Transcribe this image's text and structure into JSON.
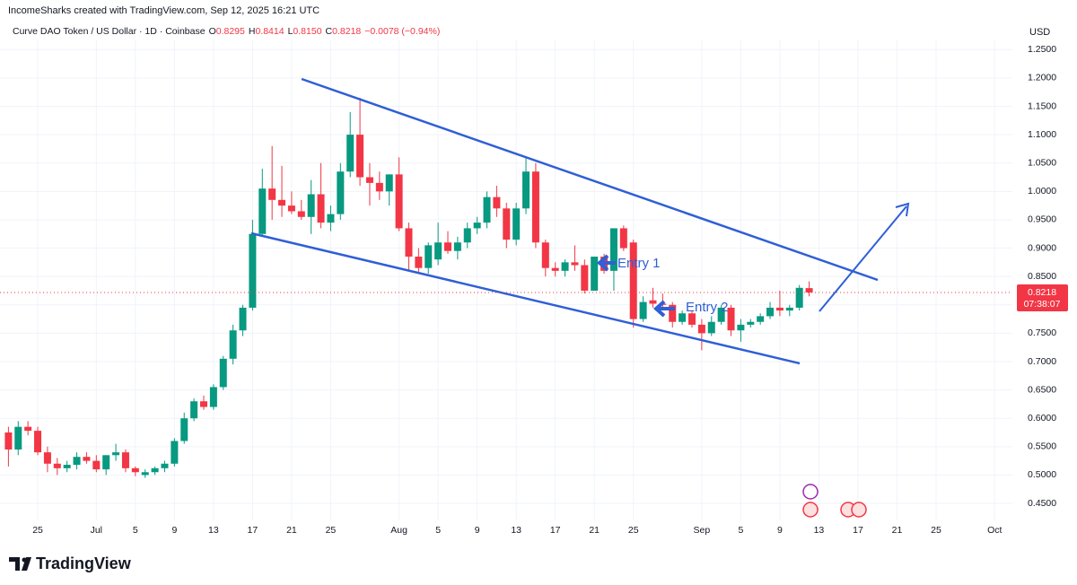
{
  "header": {
    "attribution": "IncomeSharks created with TradingView.com, Sep 12, 2025 16:21 UTC",
    "symbol": "Curve DAO Token / US Dollar · 1D · Coinbase",
    "ohlc": [
      {
        "label": "O",
        "value": "0.8295"
      },
      {
        "label": "H",
        "value": "0.8414"
      },
      {
        "label": "L",
        "value": "0.8150"
      },
      {
        "label": "C",
        "value": "0.8218"
      }
    ],
    "change": "−0.0078 (−0.94%)"
  },
  "chart_data": {
    "type": "candlestick",
    "currency": "USD",
    "countdown": "07:38:07",
    "annotations": [
      "Entry 1",
      "Entry 2"
    ],
    "colors": {
      "up": "#089981",
      "down": "#f23645"
    },
    "grid": true,
    "categories": [
      null,
      null,
      null,
      "25",
      null,
      null,
      null,
      null,
      null,
      "Jul",
      null,
      null,
      null,
      "5",
      null,
      null,
      null,
      "9",
      null,
      null,
      null,
      "13",
      null,
      null,
      null,
      "17",
      null,
      null,
      null,
      "21",
      null,
      null,
      null,
      "25",
      null,
      null,
      null,
      null,
      null,
      null,
      "Aug",
      null,
      null,
      null,
      "5",
      null,
      null,
      null,
      "9",
      null,
      null,
      null,
      "13",
      null,
      null,
      null,
      "17",
      null,
      null,
      null,
      "21",
      null,
      null,
      null,
      "25",
      null,
      null,
      null,
      null,
      null,
      null,
      "Sep",
      null,
      null,
      null,
      "5",
      null,
      null,
      null,
      "9",
      null,
      null,
      null,
      "13",
      null,
      null,
      null,
      "17",
      null,
      null,
      null,
      "21",
      null,
      null,
      null,
      "25",
      null,
      null,
      null,
      null,
      null,
      "Oct"
    ],
    "open": [
      0.575,
      0.545,
      0.585,
      0.578,
      0.54,
      0.52,
      0.512,
      0.518,
      0.532,
      0.525,
      0.51,
      0.535,
      0.54,
      0.512,
      0.5,
      0.505,
      0.512,
      0.52,
      0.56,
      0.6,
      0.63,
      0.62,
      0.655,
      0.705,
      0.755,
      0.795,
      0.925,
      1.005,
      0.985,
      0.975,
      0.965,
      0.955,
      0.995,
      0.945,
      0.96,
      1.035,
      1.1,
      1.025,
      1.015,
      1.0,
      1.03,
      0.935,
      0.885,
      0.865,
      0.88,
      0.91,
      0.895,
      0.91,
      0.935,
      0.945,
      0.99,
      0.97,
      0.915,
      0.97,
      1.035,
      0.91,
      0.865,
      0.86,
      0.875,
      0.87,
      0.825,
      0.885,
      0.86,
      0.935,
      0.91,
      0.775,
      0.808,
      0.802,
      0.8,
      0.77,
      0.785,
      0.765,
      0.75,
      0.77,
      0.795,
      0.755,
      0.765,
      0.77,
      0.78,
      0.795,
      0.79,
      0.795,
      0.8295,
      null,
      null,
      null,
      null,
      null,
      null,
      null,
      null,
      null,
      null,
      null,
      null,
      null,
      null,
      null,
      null,
      null,
      null,
      null
    ],
    "high": [
      0.585,
      0.595,
      0.595,
      0.585,
      0.55,
      0.53,
      0.525,
      0.54,
      0.54,
      0.535,
      0.535,
      0.555,
      0.545,
      0.515,
      0.51,
      0.515,
      0.525,
      0.565,
      0.61,
      0.635,
      0.64,
      0.66,
      0.71,
      0.765,
      0.8,
      0.95,
      1.04,
      1.08,
      1.045,
      1.0,
      0.985,
      1.02,
      1.05,
      0.975,
      1.05,
      1.14,
      1.165,
      1.05,
      1.035,
      1.03,
      1.06,
      0.945,
      0.9,
      0.91,
      0.945,
      0.93,
      0.92,
      0.945,
      0.955,
      1.0,
      1.01,
      0.98,
      0.98,
      1.06,
      1.05,
      0.915,
      0.875,
      0.88,
      0.905,
      0.88,
      0.885,
      0.89,
      0.935,
      0.94,
      0.915,
      0.815,
      0.83,
      0.82,
      0.805,
      0.79,
      0.79,
      0.775,
      0.78,
      0.8,
      0.8,
      0.775,
      0.775,
      0.785,
      0.805,
      0.825,
      0.8,
      0.835,
      0.8414,
      null,
      null,
      null,
      null,
      null,
      null,
      null,
      null,
      null,
      null,
      null,
      null,
      null,
      null,
      null,
      null,
      null,
      null,
      null
    ],
    "low": [
      0.515,
      0.535,
      0.57,
      0.535,
      0.505,
      0.5,
      0.505,
      0.51,
      0.52,
      0.505,
      0.5,
      0.525,
      0.505,
      0.498,
      0.495,
      0.5,
      0.505,
      0.515,
      0.555,
      0.595,
      0.615,
      0.615,
      0.65,
      0.695,
      0.745,
      0.79,
      0.92,
      0.95,
      0.955,
      0.96,
      0.95,
      0.925,
      0.935,
      0.93,
      0.95,
      1.025,
      1.01,
      0.975,
      0.985,
      0.975,
      0.93,
      0.86,
      0.855,
      0.855,
      0.87,
      0.89,
      0.88,
      0.9,
      0.925,
      0.935,
      0.955,
      0.9,
      0.905,
      0.96,
      0.9,
      0.85,
      0.85,
      0.85,
      0.86,
      0.82,
      0.825,
      0.855,
      0.825,
      0.895,
      0.76,
      0.77,
      0.795,
      0.79,
      0.76,
      0.765,
      0.76,
      0.72,
      0.745,
      0.765,
      0.745,
      0.735,
      0.76,
      0.765,
      0.775,
      0.78,
      0.78,
      0.79,
      0.815,
      null,
      null,
      null,
      null,
      null,
      null,
      null,
      null,
      null,
      null,
      null,
      null,
      null,
      null,
      null,
      null,
      null,
      null,
      null
    ],
    "close": [
      0.545,
      0.585,
      0.578,
      0.54,
      0.52,
      0.512,
      0.518,
      0.532,
      0.525,
      0.51,
      0.535,
      0.54,
      0.512,
      0.505,
      0.505,
      0.512,
      0.52,
      0.56,
      0.6,
      0.63,
      0.62,
      0.655,
      0.705,
      0.755,
      0.795,
      0.925,
      1.005,
      0.985,
      0.975,
      0.965,
      0.955,
      0.995,
      0.945,
      0.96,
      1.035,
      1.1,
      1.025,
      1.015,
      1.0,
      1.03,
      0.935,
      0.885,
      0.865,
      0.905,
      0.91,
      0.895,
      0.91,
      0.935,
      0.945,
      0.99,
      0.97,
      0.915,
      0.97,
      1.035,
      0.91,
      0.865,
      0.86,
      0.875,
      0.87,
      0.825,
      0.885,
      0.86,
      0.935,
      0.9,
      0.775,
      0.805,
      0.802,
      0.8,
      0.77,
      0.785,
      0.765,
      0.75,
      0.77,
      0.795,
      0.755,
      0.765,
      0.77,
      0.78,
      0.795,
      0.79,
      0.795,
      0.83,
      0.8218,
      null,
      null,
      null,
      null,
      null,
      null,
      null,
      null,
      null,
      null,
      null,
      null,
      null,
      null,
      null,
      null,
      null,
      null,
      null
    ],
    "ylim": [
      0.42,
      1.29
    ],
    "yticks": [
      {
        "value": 0.45,
        "label": "0.4500"
      },
      {
        "value": 0.5,
        "label": "0.5000"
      },
      {
        "value": 0.55,
        "label": "0.5500"
      },
      {
        "value": 0.6,
        "label": "0.6000"
      },
      {
        "value": 0.65,
        "label": "0.6500"
      },
      {
        "value": 0.7,
        "label": "0.7000"
      },
      {
        "value": 0.75,
        "label": "0.7500"
      },
      {
        "value": 0.8,
        "label": "0.8000"
      },
      {
        "value": 0.85,
        "label": "0.8500"
      },
      {
        "value": 0.9,
        "label": "0.9000"
      },
      {
        "value": 0.95,
        "label": "0.9500"
      },
      {
        "value": 1.0,
        "label": "1.0000"
      },
      {
        "value": 1.05,
        "label": "1.0500"
      },
      {
        "value": 1.1,
        "label": "1.1000"
      },
      {
        "value": 1.15,
        "label": "1.1500"
      },
      {
        "value": 1.2,
        "label": "1.2000"
      },
      {
        "value": 1.25,
        "label": "1.2500"
      }
    ]
  },
  "footer": {
    "logo": "TradingView"
  }
}
